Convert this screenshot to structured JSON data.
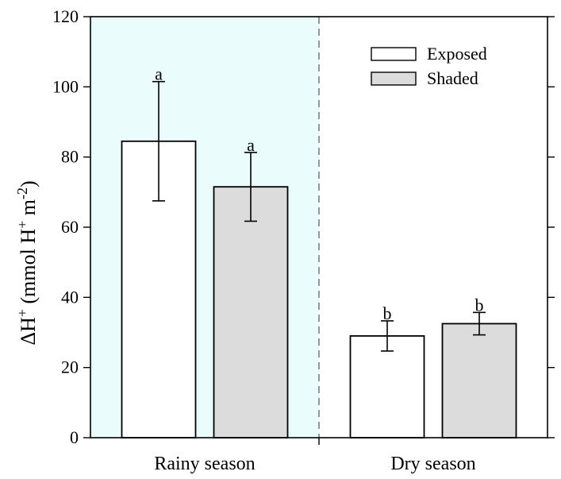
{
  "chart_data": {
    "type": "bar",
    "title": "",
    "xlabel": "",
    "ylabel": {
      "delta": "ΔH",
      "sup1": "+",
      "units_open": " (mmol H",
      "sup2": "+",
      "units_mid": " m",
      "sup3": "-2",
      "units_close": ")"
    },
    "ylim": [
      0,
      120
    ],
    "yticks": [
      0,
      20,
      40,
      60,
      80,
      100,
      120
    ],
    "categories": [
      "Rainy season",
      "Dry season"
    ],
    "series": [
      {
        "name": "Exposed",
        "color": "#ffffff",
        "values": [
          84.5,
          29.0
        ],
        "errors": [
          17,
          4.3
        ],
        "labels": [
          "a",
          "b"
        ]
      },
      {
        "name": "Shaded",
        "color": "#dcdcdc",
        "values": [
          71.5,
          32.5
        ],
        "errors": [
          9.8,
          3.2
        ],
        "labels": [
          "a",
          "b"
        ]
      }
    ],
    "legend_position": "top-right",
    "highlight": {
      "category": "Rainy season",
      "color": "#eafcfc"
    },
    "separator": "dashed"
  }
}
